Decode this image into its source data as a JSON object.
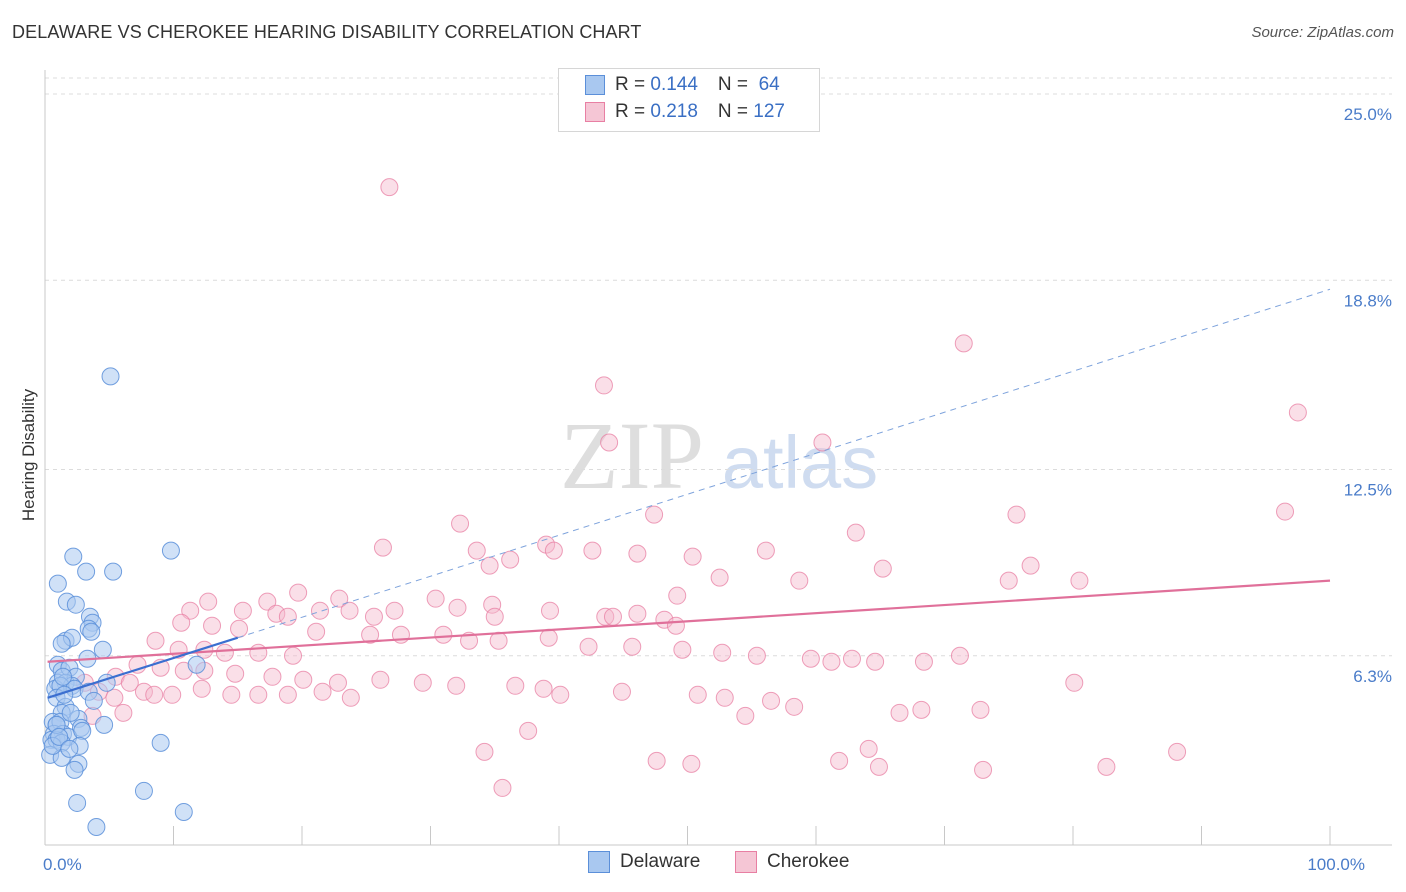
{
  "title": "DELAWARE VS CHEROKEE HEARING DISABILITY CORRELATION CHART",
  "source": "Source: ZipAtlas.com",
  "watermark": {
    "zip": "ZIP",
    "atlas": "atlas"
  },
  "legend": {
    "rows": [
      {
        "r_label": "R = ",
        "r_value": "0.144",
        "n_label": "N = ",
        "n_value": " 64"
      },
      {
        "r_label": "R = ",
        "r_value": "0.218",
        "n_label": "N = ",
        "n_value": "127"
      }
    ]
  },
  "bottom_legend": {
    "delaware": "Delaware",
    "cherokee": "Cherokee"
  },
  "colors": {
    "delaware_fill": "#a9c8f0",
    "delaware_stroke": "#5b8fd9",
    "delaware_line": "#3b6fd0",
    "cherokee_fill": "#f5b8cb",
    "cherokee_stroke": "#e87fa3",
    "cherokee_line": "#e0709a",
    "tick": "#4a7cc9"
  },
  "chart_data": {
    "type": "scatter",
    "title": "DELAWARE VS CHEROKEE HEARING DISABILITY CORRELATION CHART",
    "xlabel": "",
    "ylabel": "Hearing Disability",
    "xlim": [
      0,
      100
    ],
    "ylim": [
      0,
      25.8
    ],
    "y_ticks": [
      {
        "value": 6.3,
        "label": "6.3%"
      },
      {
        "value": 12.5,
        "label": "12.5%"
      },
      {
        "value": 18.8,
        "label": "18.8%"
      },
      {
        "value": 25.0,
        "label": "25.0%"
      }
    ],
    "x_tick_labels": [
      {
        "value": 0,
        "label": "0.0%"
      },
      {
        "value": 100,
        "label": "100.0%"
      }
    ],
    "x_minor_ticks": [
      10,
      20,
      30,
      40,
      50,
      60,
      70,
      80,
      90,
      100
    ],
    "grid": "horizontal dashed",
    "series": [
      {
        "name": "Delaware",
        "R": 0.144,
        "N": 64,
        "trend": {
          "x0": 0.2,
          "y0": 4.9,
          "x1": 15,
          "y1": 6.9,
          "extend_to_x": 100,
          "extend_to_y": 18.5
        },
        "points": [
          [
            5.1,
            15.6
          ],
          [
            9.8,
            9.8
          ],
          [
            2.2,
            9.6
          ],
          [
            3.2,
            9.1
          ],
          [
            5.3,
            9.1
          ],
          [
            1.0,
            8.7
          ],
          [
            1.7,
            8.1
          ],
          [
            2.4,
            8.0
          ],
          [
            3.5,
            7.6
          ],
          [
            3.7,
            7.4
          ],
          [
            3.4,
            7.2
          ],
          [
            3.6,
            7.1
          ],
          [
            1.6,
            6.8
          ],
          [
            2.1,
            6.9
          ],
          [
            1.3,
            6.7
          ],
          [
            4.5,
            6.5
          ],
          [
            3.3,
            6.2
          ],
          [
            1.0,
            6.0
          ],
          [
            1.3,
            5.8
          ],
          [
            1.9,
            5.9
          ],
          [
            11.8,
            6.0
          ],
          [
            2.4,
            5.6
          ],
          [
            1.0,
            5.4
          ],
          [
            1.6,
            5.4
          ],
          [
            2.1,
            5.3
          ],
          [
            4.8,
            5.4
          ],
          [
            0.8,
            5.2
          ],
          [
            1.2,
            5.3
          ],
          [
            2.3,
            5.2
          ],
          [
            3.4,
            5.1
          ],
          [
            0.9,
            4.9
          ],
          [
            3.8,
            4.8
          ],
          [
            1.6,
            4.6
          ],
          [
            1.3,
            4.4
          ],
          [
            0.6,
            4.1
          ],
          [
            0.9,
            4.0
          ],
          [
            1.2,
            4.1
          ],
          [
            2.6,
            4.2
          ],
          [
            2.8,
            3.9
          ],
          [
            4.6,
            4.0
          ],
          [
            0.7,
            3.7
          ],
          [
            1.4,
            3.7
          ],
          [
            1.8,
            3.6
          ],
          [
            2.9,
            3.8
          ],
          [
            0.5,
            3.5
          ],
          [
            0.9,
            3.5
          ],
          [
            1.3,
            3.4
          ],
          [
            2.7,
            3.3
          ],
          [
            9.0,
            3.4
          ],
          [
            0.4,
            3.0
          ],
          [
            1.3,
            2.9
          ],
          [
            2.6,
            2.7
          ],
          [
            2.3,
            2.5
          ],
          [
            7.7,
            1.8
          ],
          [
            2.5,
            1.4
          ],
          [
            10.8,
            1.1
          ],
          [
            4.0,
            0.6
          ],
          [
            0.9,
            4.0
          ],
          [
            1.5,
            5.0
          ],
          [
            2.0,
            4.4
          ],
          [
            0.6,
            3.3
          ],
          [
            1.1,
            3.6
          ],
          [
            1.9,
            3.2
          ],
          [
            1.4,
            5.6
          ]
        ]
      },
      {
        "name": "Cherokee",
        "R": 0.218,
        "N": 127,
        "trend": {
          "x0": 0.2,
          "y0": 6.1,
          "x1": 100,
          "y1": 8.8
        },
        "points": [
          [
            26.8,
            21.9
          ],
          [
            71.5,
            16.7
          ],
          [
            43.5,
            15.3
          ],
          [
            97.5,
            14.4
          ],
          [
            43.9,
            13.4
          ],
          [
            60.5,
            13.4
          ],
          [
            32.3,
            10.7
          ],
          [
            47.4,
            11.0
          ],
          [
            63.1,
            10.4
          ],
          [
            75.6,
            11.0
          ],
          [
            96.5,
            11.1
          ],
          [
            26.3,
            9.9
          ],
          [
            36.2,
            9.5
          ],
          [
            39.0,
            10.0
          ],
          [
            42.6,
            9.8
          ],
          [
            46.1,
            9.7
          ],
          [
            50.4,
            9.6
          ],
          [
            56.1,
            9.8
          ],
          [
            33.6,
            9.8
          ],
          [
            34.6,
            9.3
          ],
          [
            39.6,
            9.8
          ],
          [
            52.5,
            8.9
          ],
          [
            58.7,
            8.8
          ],
          [
            75.0,
            8.8
          ],
          [
            76.7,
            9.3
          ],
          [
            65.2,
            9.2
          ],
          [
            80.5,
            8.8
          ],
          [
            12.7,
            8.1
          ],
          [
            17.3,
            8.1
          ],
          [
            19.7,
            8.4
          ],
          [
            22.9,
            8.2
          ],
          [
            30.4,
            8.2
          ],
          [
            32.1,
            7.9
          ],
          [
            34.8,
            8.0
          ],
          [
            49.2,
            8.3
          ],
          [
            11.3,
            7.8
          ],
          [
            15.4,
            7.8
          ],
          [
            18.0,
            7.7
          ],
          [
            21.4,
            7.8
          ],
          [
            23.7,
            7.8
          ],
          [
            25.6,
            7.6
          ],
          [
            27.2,
            7.8
          ],
          [
            35.0,
            7.6
          ],
          [
            39.3,
            7.8
          ],
          [
            43.6,
            7.6
          ],
          [
            44.2,
            7.6
          ],
          [
            46.1,
            7.7
          ],
          [
            48.2,
            7.5
          ],
          [
            49.1,
            7.3
          ],
          [
            10.6,
            7.4
          ],
          [
            13.0,
            7.3
          ],
          [
            15.1,
            7.2
          ],
          [
            18.9,
            7.6
          ],
          [
            21.1,
            7.1
          ],
          [
            25.3,
            7.0
          ],
          [
            27.7,
            7.0
          ],
          [
            31.0,
            7.0
          ],
          [
            33.0,
            6.8
          ],
          [
            35.3,
            6.8
          ],
          [
            39.2,
            6.9
          ],
          [
            42.3,
            6.6
          ],
          [
            45.7,
            6.6
          ],
          [
            49.6,
            6.5
          ],
          [
            52.7,
            6.4
          ],
          [
            55.4,
            6.3
          ],
          [
            59.6,
            6.2
          ],
          [
            61.2,
            6.1
          ],
          [
            62.8,
            6.2
          ],
          [
            64.6,
            6.1
          ],
          [
            68.4,
            6.1
          ],
          [
            71.2,
            6.3
          ],
          [
            8.6,
            6.8
          ],
          [
            10.4,
            6.5
          ],
          [
            12.4,
            6.5
          ],
          [
            14.0,
            6.4
          ],
          [
            16.6,
            6.4
          ],
          [
            19.3,
            6.3
          ],
          [
            7.2,
            6.0
          ],
          [
            9.0,
            5.9
          ],
          [
            10.8,
            5.8
          ],
          [
            12.4,
            5.8
          ],
          [
            14.8,
            5.7
          ],
          [
            17.7,
            5.6
          ],
          [
            20.1,
            5.5
          ],
          [
            22.8,
            5.4
          ],
          [
            26.1,
            5.5
          ],
          [
            29.4,
            5.4
          ],
          [
            32.0,
            5.3
          ],
          [
            36.6,
            5.3
          ],
          [
            38.8,
            5.2
          ],
          [
            40.1,
            5.0
          ],
          [
            5.5,
            5.6
          ],
          [
            6.6,
            5.4
          ],
          [
            7.7,
            5.1
          ],
          [
            8.5,
            5.0
          ],
          [
            9.9,
            5.0
          ],
          [
            12.2,
            5.2
          ],
          [
            14.5,
            5.0
          ],
          [
            16.6,
            5.0
          ],
          [
            18.9,
            5.0
          ],
          [
            21.6,
            5.1
          ],
          [
            23.8,
            4.9
          ],
          [
            3.1,
            5.4
          ],
          [
            4.2,
            5.1
          ],
          [
            5.4,
            4.9
          ],
          [
            6.1,
            4.4
          ],
          [
            3.7,
            4.3
          ],
          [
            44.9,
            5.1
          ],
          [
            50.8,
            5.0
          ],
          [
            52.9,
            4.9
          ],
          [
            56.5,
            4.8
          ],
          [
            58.3,
            4.6
          ],
          [
            66.5,
            4.4
          ],
          [
            68.2,
            4.5
          ],
          [
            72.8,
            4.5
          ],
          [
            80.1,
            5.4
          ],
          [
            37.6,
            3.8
          ],
          [
            34.2,
            3.1
          ],
          [
            47.6,
            2.8
          ],
          [
            64.1,
            3.2
          ],
          [
            61.8,
            2.8
          ],
          [
            64.9,
            2.6
          ],
          [
            73.0,
            2.5
          ],
          [
            88.1,
            3.1
          ],
          [
            35.6,
            1.9
          ],
          [
            82.6,
            2.6
          ],
          [
            54.5,
            4.3
          ],
          [
            50.3,
            2.7
          ]
        ]
      }
    ]
  }
}
